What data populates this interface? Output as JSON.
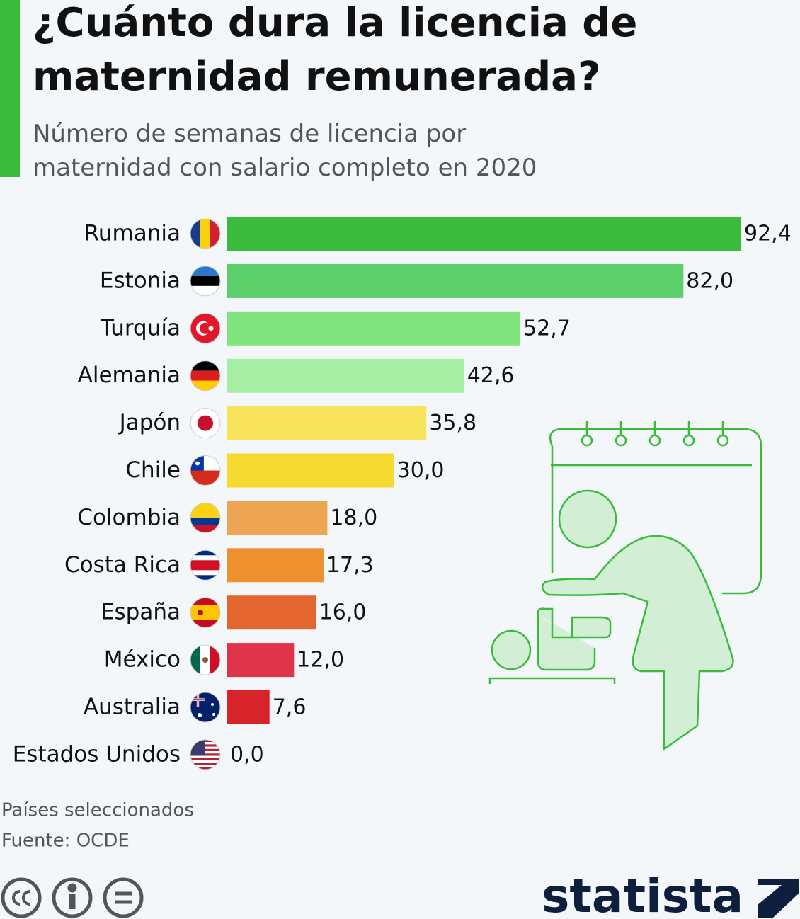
{
  "chart_data": {
    "type": "bar",
    "orientation": "horizontal",
    "title": "¿Cuánto dura la licencia de maternidad remunerada?",
    "subtitle": "Número de semanas de licencia por maternidad con salario completo en 2020",
    "categories": [
      "Rumania",
      "Estonia",
      "Turquía",
      "Alemania",
      "Japón",
      "Chile",
      "Colombia",
      "Costa Rica",
      "España",
      "México",
      "Australia",
      "Estados Unidos"
    ],
    "values": [
      92.4,
      82.0,
      52.7,
      42.6,
      35.8,
      30.0,
      18.0,
      17.3,
      16.0,
      12.0,
      7.6,
      0.0
    ],
    "value_labels": [
      "92,4",
      "82,0",
      "52,7",
      "42,6",
      "35,8",
      "30,0",
      "18,0",
      "17,3",
      "16,0",
      "12,0",
      "7,6",
      "0,0"
    ],
    "colors": [
      "#3bbb3b",
      "#5ccf6a",
      "#80e57f",
      "#a6eea3",
      "#f8e35c",
      "#f7da2f",
      "#eea553",
      "#ef902f",
      "#e4662f",
      "#e0344a",
      "#d8232a",
      "#c41f2a"
    ],
    "note": "Países seleccionados",
    "source": "Fuente: OCDE",
    "brand": "statista"
  }
}
